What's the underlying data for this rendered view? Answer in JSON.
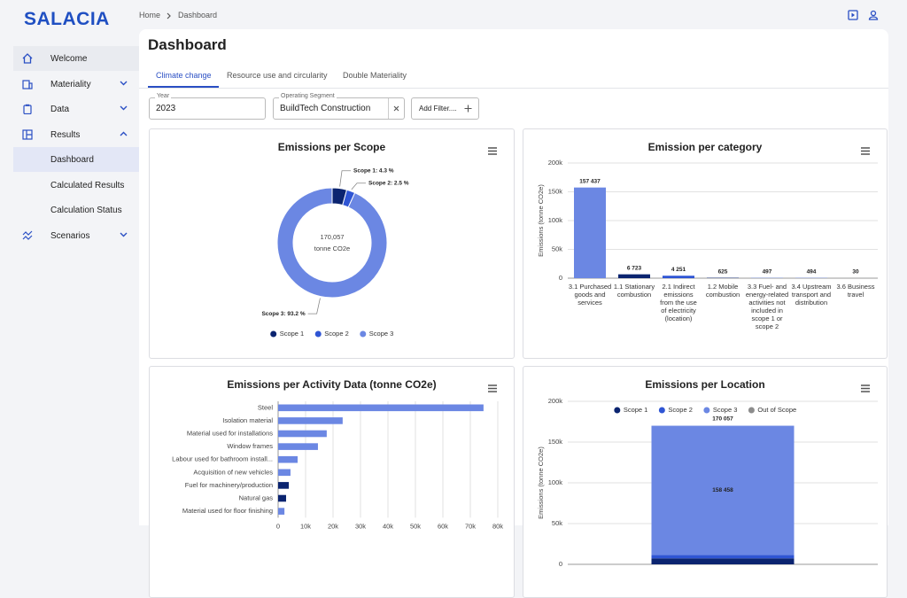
{
  "logo": "SALACIA",
  "nav": [
    "Welcome",
    "Materiality",
    "Data",
    "Results",
    "Dashboard",
    "Calculated Results",
    "Calculation Status",
    "Scenarios"
  ],
  "breadcrumb": [
    "Home",
    "Dashboard"
  ],
  "page_title": "Dashboard",
  "tabs": [
    "Climate change",
    "Resource use and circularity",
    "Double Materiality"
  ],
  "filters": {
    "year_label": "Year",
    "year_value": "2023",
    "segment_label": "Operating Segment",
    "segment_value": "BuildTech Construction",
    "add_filter": "Add Filter...."
  },
  "chart_data": [
    {
      "type": "pie",
      "title": "Emissions per Scope",
      "donut": true,
      "center_value": "170,057",
      "center_unit": "tonne CO2e",
      "categories": [
        "Scope 1",
        "Scope 2",
        "Scope 3"
      ],
      "values": [
        4.3,
        2.5,
        93.2
      ],
      "value_labels": [
        "Scope 1: 4.3 %",
        "Scope 2: 2.5 %",
        "Scope 3: 93.2 %"
      ],
      "colors": [
        "#0b2470",
        "#2f55d4",
        "#6b87e3"
      ],
      "legend": "bottom"
    },
    {
      "type": "bar",
      "title": "Emission per category",
      "ylabel": "Emissions (tonne CO2e)",
      "categories": [
        "3.1 Purchased goods and services",
        "1.1 Stationary combustion",
        "2.1 Indirect emissions from the use of electricity (location)",
        "1.2 Mobile combustion",
        "3.3 Fuel- and energy-related activities not included in scope 1 or scope 2",
        "3.4 Upstream transport and distribution",
        "3.6 Business travel"
      ],
      "values": [
        157437,
        6723,
        4251,
        625,
        497,
        494,
        30
      ],
      "value_labels": [
        "157 437",
        "6 723",
        "4 251",
        "625",
        "497",
        "494",
        "30"
      ],
      "colors": [
        "#6b87e3",
        "#0b2470",
        "#2f55d4",
        "#0b2470",
        "#6b87e3",
        "#6b87e3",
        "#6b87e3"
      ],
      "ylim": [
        0,
        200000
      ],
      "yticks": [
        0,
        {
          "value": 50000,
          "label": "50k"
        },
        {
          "value": 100000,
          "label": "100k"
        },
        {
          "value": 150000,
          "label": "150k"
        },
        {
          "value": 200000,
          "label": "200k"
        }
      ],
      "grid": true
    },
    {
      "type": "hbar",
      "title": "Emissions per Activity Data (tonne CO2e)",
      "categories": [
        "Steel",
        "Isolation material",
        "Material used for installations",
        "Window frames",
        "Labour used for bathroom install...",
        "Acquisition of new vehicles",
        "Fuel for machinery/production",
        "Natural gas",
        "Material used for floor finishing"
      ],
      "values": [
        74800,
        23500,
        17700,
        14500,
        7100,
        4500,
        3900,
        2900,
        2300
      ],
      "colors": [
        "#6b87e3",
        "#6b87e3",
        "#6b87e3",
        "#6b87e3",
        "#6b87e3",
        "#6b87e3",
        "#0b2470",
        "#0b2470",
        "#6b87e3"
      ],
      "xlim": [
        0,
        80000
      ],
      "xticks": [
        0,
        {
          "value": 10000,
          "label": "10k"
        },
        {
          "value": 20000,
          "label": "20k"
        },
        {
          "value": 30000,
          "label": "30k"
        },
        {
          "value": 40000,
          "label": "40k"
        },
        {
          "value": 50000,
          "label": "50k"
        },
        {
          "value": 60000,
          "label": "60k"
        },
        {
          "value": 70000,
          "label": "70k"
        },
        {
          "value": 80000,
          "label": "80k"
        }
      ],
      "grid": true
    },
    {
      "type": "stacked_bar",
      "title": "Emissions per Location",
      "ylabel": "Emissions (tonne CO2e)",
      "categories": [
        null
      ],
      "series": [
        {
          "name": "Scope 1",
          "color": "#0b2470",
          "values": [
            7348
          ]
        },
        {
          "name": "Scope 2",
          "color": "#2f55d4",
          "values": [
            4251
          ]
        },
        {
          "name": "Scope 3",
          "color": "#6b87e3",
          "values": [
            158458
          ],
          "value_labels": [
            "158 458"
          ]
        },
        {
          "name": "Out of Scope",
          "color": "#8c8c8c",
          "values": [
            0
          ]
        }
      ],
      "totals": [
        170057
      ],
      "total_labels": [
        "170 057"
      ],
      "ylim": [
        0,
        200000
      ],
      "yticks": [
        0,
        {
          "value": 50000,
          "label": "50k"
        },
        {
          "value": 100000,
          "label": "100k"
        },
        {
          "value": 150000,
          "label": "150k"
        },
        {
          "value": 200000,
          "label": "200k"
        }
      ],
      "legend": "top",
      "grid": true
    }
  ]
}
